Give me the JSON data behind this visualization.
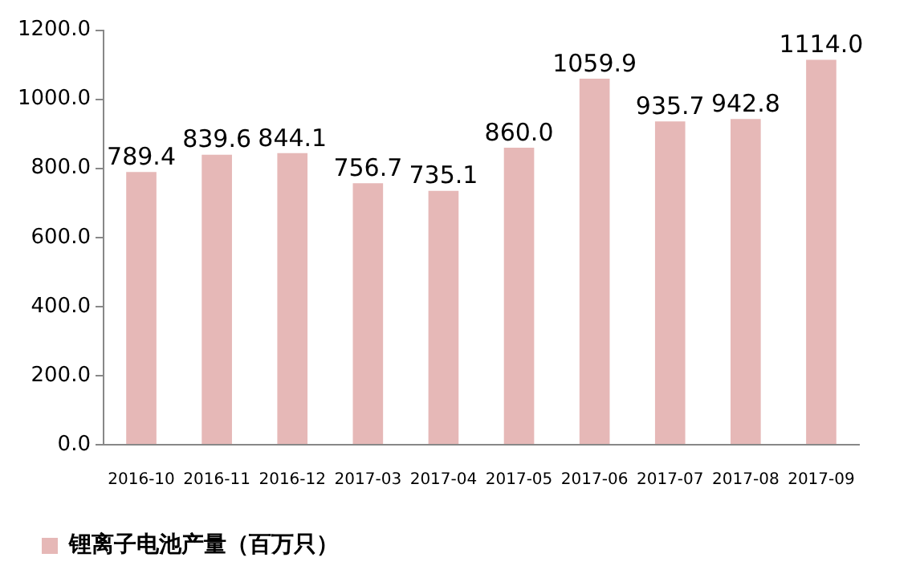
{
  "chart_data": {
    "type": "bar",
    "categories": [
      "2016-10",
      "2016-11",
      "2016-12",
      "2017-03",
      "2017-04",
      "2017-05",
      "2017-06",
      "2017-07",
      "2017-08",
      "2017-09"
    ],
    "series": [
      {
        "name": "锂离子电池产量（百万只）",
        "color": "#e6b8b7",
        "values": [
          789.4,
          839.6,
          844.1,
          756.7,
          735.1,
          860.0,
          1059.9,
          935.7,
          942.8,
          1114.0
        ],
        "value_labels": [
          "789.4",
          "839.6",
          "844.1",
          "756.7",
          "735.1",
          "860.0",
          "1059.9",
          "935.7",
          "942.8",
          "1114.0"
        ]
      }
    ],
    "ylim": [
      0,
      1200
    ],
    "yticks": [
      {
        "value": 0,
        "label": "0.0"
      },
      {
        "value": 200,
        "label": "200.0"
      },
      {
        "value": 400,
        "label": "400.0"
      },
      {
        "value": 600,
        "label": "600.0"
      },
      {
        "value": 800,
        "label": "800.0"
      },
      {
        "value": 1000,
        "label": "1000.0"
      },
      {
        "value": 1200,
        "label": "1200.0"
      }
    ],
    "grid": false,
    "legend": "bottom left"
  }
}
